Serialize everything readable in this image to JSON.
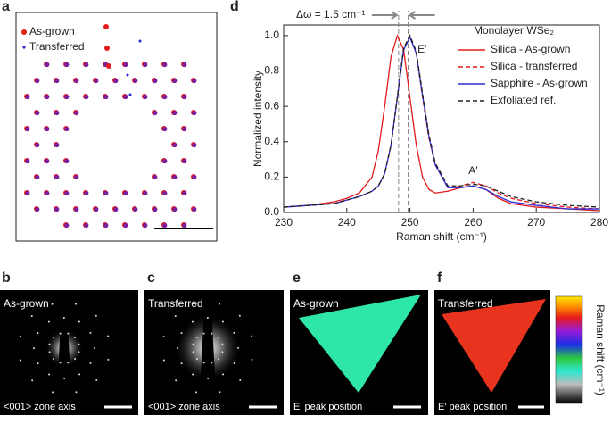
{
  "panels": {
    "a": {
      "letter": "a",
      "legend": [
        "As-grown",
        "Transferred"
      ]
    },
    "b": {
      "letter": "b",
      "label": "As-grown",
      "caption": "<001> zone axis"
    },
    "c": {
      "letter": "c",
      "label": "Transferred",
      "caption": "<001> zone axis"
    },
    "d": {
      "letter": "d"
    },
    "e": {
      "letter": "e",
      "label": "As-grown",
      "caption": "E′ peak position"
    },
    "f": {
      "letter": "f",
      "label": "Transferred",
      "caption": "E′ peak position",
      "colorbar_label": "Raman shift (cm⁻¹)"
    }
  },
  "chart_data": {
    "type": "line",
    "legend_title": "Monolayer WSe₂",
    "x_label": "Raman shift (cm⁻¹)",
    "y_label": "Normalized intensity",
    "annotations": [
      "Δω = 1.5 cm⁻¹",
      "E′",
      "A′"
    ],
    "reference_lines": [
      248.2,
      249.7
    ],
    "x": [
      230,
      234,
      238,
      240,
      242,
      244,
      245,
      246,
      247,
      248,
      249,
      250,
      251,
      252,
      253,
      254,
      256,
      258,
      260,
      262,
      264,
      266,
      270,
      275,
      280
    ],
    "series": [
      {
        "name": "Silica - As-grown",
        "color": "#e41a1c",
        "dash": false,
        "values": [
          0.03,
          0.04,
          0.06,
          0.08,
          0.11,
          0.2,
          0.35,
          0.6,
          0.88,
          1.0,
          0.92,
          0.65,
          0.38,
          0.2,
          0.13,
          0.11,
          0.12,
          0.14,
          0.15,
          0.13,
          0.08,
          0.05,
          0.03,
          0.02,
          0.01
        ]
      },
      {
        "name": "Silica - transferred",
        "color": "#e41a1c",
        "dash": true,
        "values": [
          0.03,
          0.04,
          0.05,
          0.07,
          0.09,
          0.12,
          0.15,
          0.22,
          0.38,
          0.65,
          0.92,
          1.0,
          0.9,
          0.65,
          0.42,
          0.27,
          0.14,
          0.15,
          0.17,
          0.15,
          0.11,
          0.08,
          0.05,
          0.03,
          0.02
        ]
      },
      {
        "name": "Sapphire - As-grown",
        "color": "#2b2bd6",
        "dash": false,
        "values": [
          0.03,
          0.04,
          0.05,
          0.07,
          0.09,
          0.12,
          0.15,
          0.22,
          0.38,
          0.65,
          0.92,
          0.99,
          0.9,
          0.66,
          0.43,
          0.27,
          0.14,
          0.14,
          0.15,
          0.13,
          0.09,
          0.06,
          0.04,
          0.02,
          0.02
        ]
      },
      {
        "name": "Exfoliated ref.",
        "color": "#222222",
        "dash": true,
        "values": [
          0.03,
          0.04,
          0.05,
          0.07,
          0.09,
          0.12,
          0.15,
          0.22,
          0.38,
          0.65,
          0.93,
          1.0,
          0.91,
          0.67,
          0.44,
          0.28,
          0.15,
          0.15,
          0.16,
          0.15,
          0.12,
          0.09,
          0.06,
          0.04,
          0.03
        ]
      }
    ],
    "xlim": [
      230,
      280
    ],
    "xticks": [
      230,
      240,
      250,
      260,
      270,
      280
    ],
    "ylim": [
      0,
      1.06
    ],
    "yticks": [
      {
        "value": 0,
        "label": "0.0"
      },
      {
        "value": 0.2,
        "label": "0.2"
      },
      {
        "value": 0.4,
        "label": "0.4"
      },
      {
        "value": 0.6,
        "label": "0.6"
      },
      {
        "value": 0.8,
        "label": "0.8"
      },
      {
        "value": 1.0,
        "label": "1.0"
      }
    ]
  }
}
